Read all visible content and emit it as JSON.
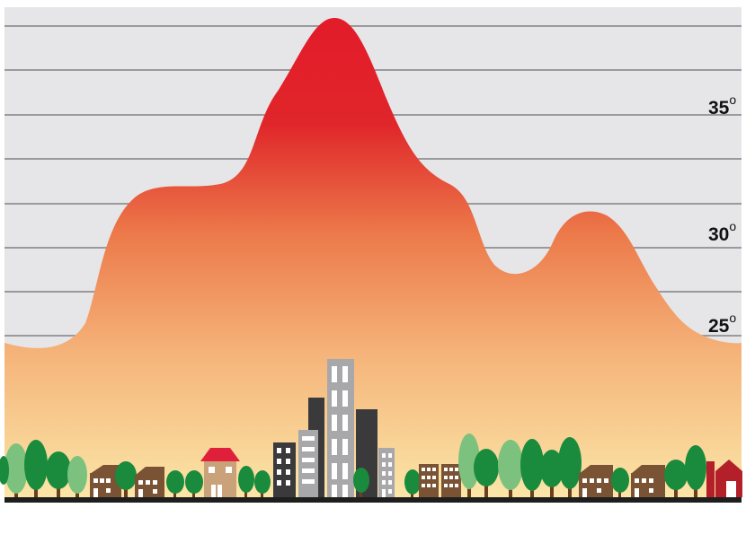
{
  "diagram": {
    "temperature_labels": [
      {
        "value": "35",
        "degree": "o"
      },
      {
        "value": "30",
        "degree": "o"
      },
      {
        "value": "25",
        "degree": "o"
      }
    ],
    "colors": {
      "sky": "#e6e6e8",
      "gridline": "#9a9a9e",
      "heat_top": "#e31b2a",
      "heat_mid": "#ec7a4a",
      "heat_bottom": "#f9dca0",
      "ground": "#1e1e1e",
      "tree_dark": "#1a8a3c",
      "tree_light": "#7cc27e",
      "tree_trunk": "#6b3f1e",
      "house": "#7a5234",
      "tower_light": "#a8a8ab",
      "tower_dark": "#3a3a3c",
      "barn": "#b3202a",
      "roof_red": "#e0203a",
      "house_tan": "#c9a27a"
    }
  }
}
